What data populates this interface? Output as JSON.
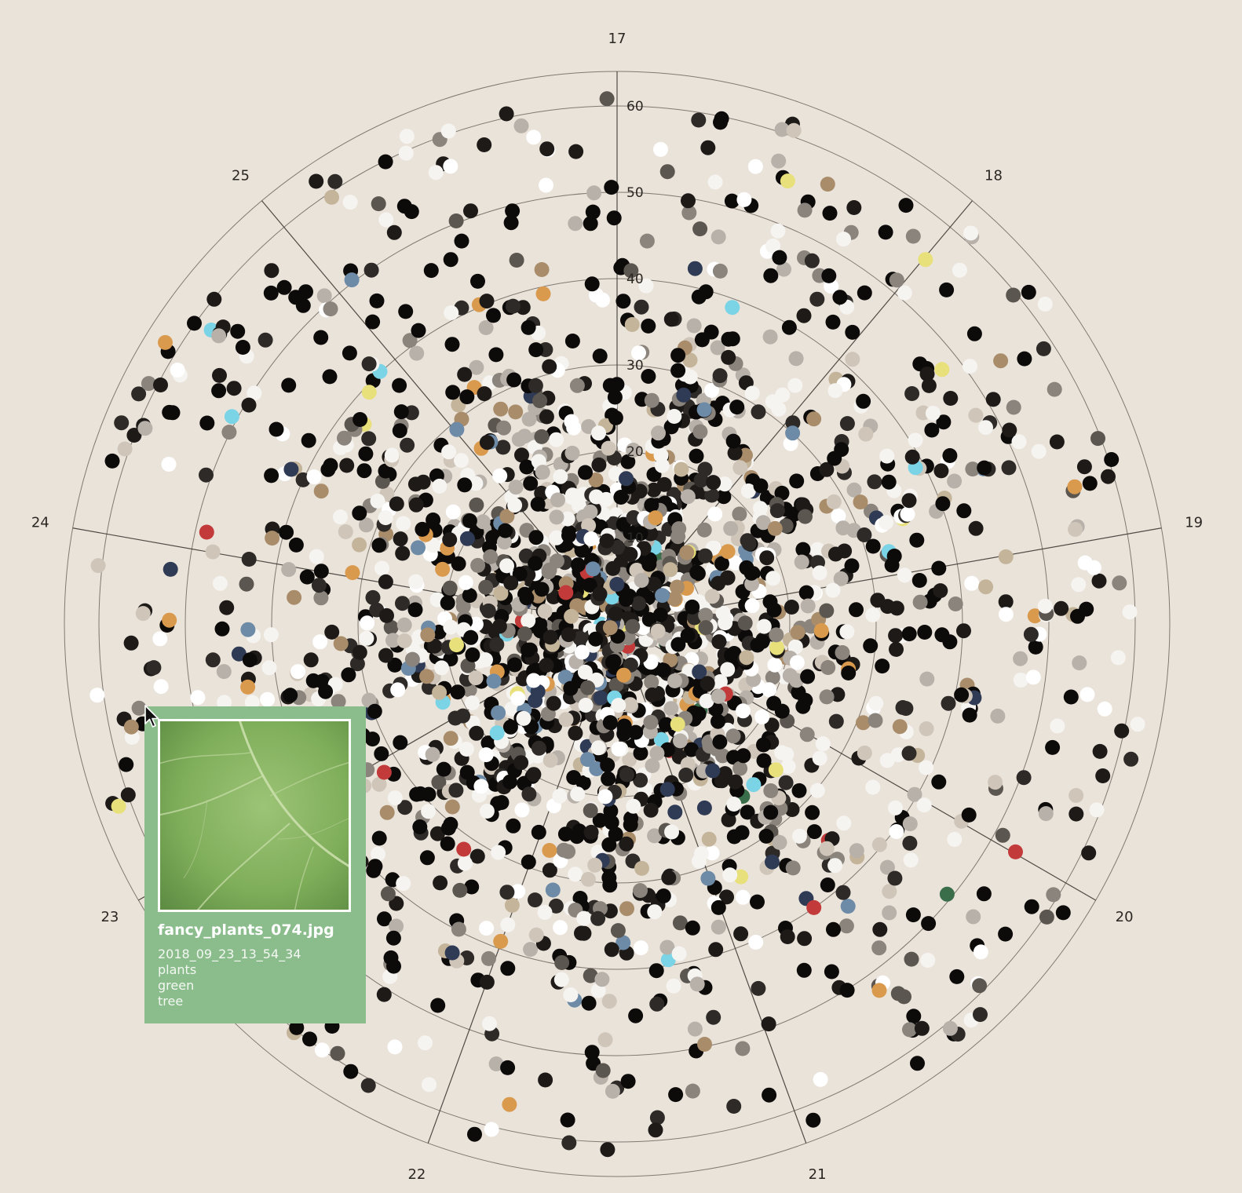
{
  "chart_data": {
    "type": "scatter",
    "coordinate_system": "polar",
    "angular_categories": [
      "17",
      "18",
      "19",
      "20",
      "21",
      "22",
      "23",
      "24",
      "25"
    ],
    "radial_ticks": [
      10,
      20,
      30,
      40,
      50,
      60
    ],
    "radial_range": [
      0,
      64
    ],
    "grid": true,
    "point_count_estimate": 2500,
    "palette": [
      "#0d0b0a",
      "#1d1a18",
      "#2e2a27",
      "#f6f4f1",
      "#ffffff",
      "#b7b1aa",
      "#8a847d",
      "#5c5650",
      "#cfc5b8",
      "#a98d6b",
      "#7bd3e6",
      "#d99a4e",
      "#2f3a55",
      "#c4b49a",
      "#6d8aa6",
      "#3a6e4a",
      "#c23a3a",
      "#e8e07a"
    ],
    "palette_weights": [
      30,
      14,
      8,
      14,
      6,
      7,
      6,
      5,
      4,
      3,
      1.2,
      1.4,
      1.5,
      2.2,
      1.3,
      0.5,
      0.4,
      0.6
    ]
  },
  "tooltip": {
    "filename": "fancy_plants_074.jpg",
    "date": "2018_09_23_13_54_34",
    "tags": [
      "plants",
      "green",
      "tree"
    ],
    "background_color": "#8bbc8c",
    "thumbnail": "green-leaf-image"
  },
  "cursor": "arrow-pointer-icon"
}
